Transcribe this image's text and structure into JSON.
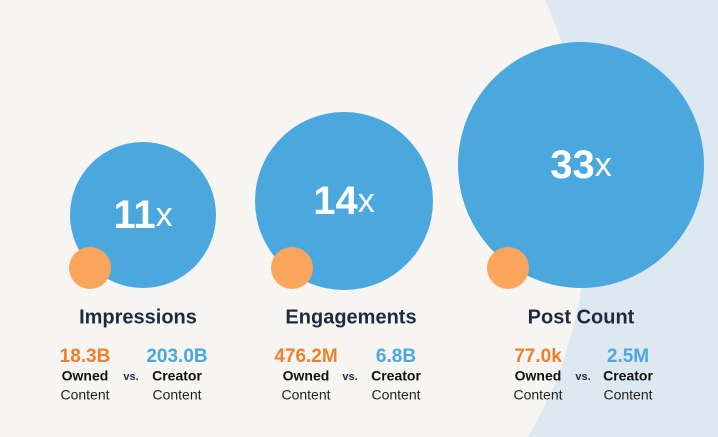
{
  "panels": [
    {
      "multiplier": "11",
      "suffix": "x",
      "metric": "Impressions",
      "owned_value": "18.3B",
      "owned_label": "Owned",
      "owned_sub": "Content",
      "vs": "vs.",
      "creator_value": "203.0B",
      "creator_label": "Creator",
      "creator_sub": "Content"
    },
    {
      "multiplier": "14",
      "suffix": "x",
      "metric": "Engagements",
      "owned_value": "476.2M",
      "owned_label": "Owned",
      "owned_sub": "Content",
      "vs": "vs.",
      "creator_value": "6.8B",
      "creator_label": "Creator",
      "creator_sub": "Content"
    },
    {
      "multiplier": "33",
      "suffix": "x",
      "metric": "Post Count",
      "owned_value": "77.0k",
      "owned_label": "Owned",
      "owned_sub": "Content",
      "vs": "vs.",
      "creator_value": "2.5M",
      "creator_label": "Creator",
      "creator_sub": "Content"
    }
  ]
}
